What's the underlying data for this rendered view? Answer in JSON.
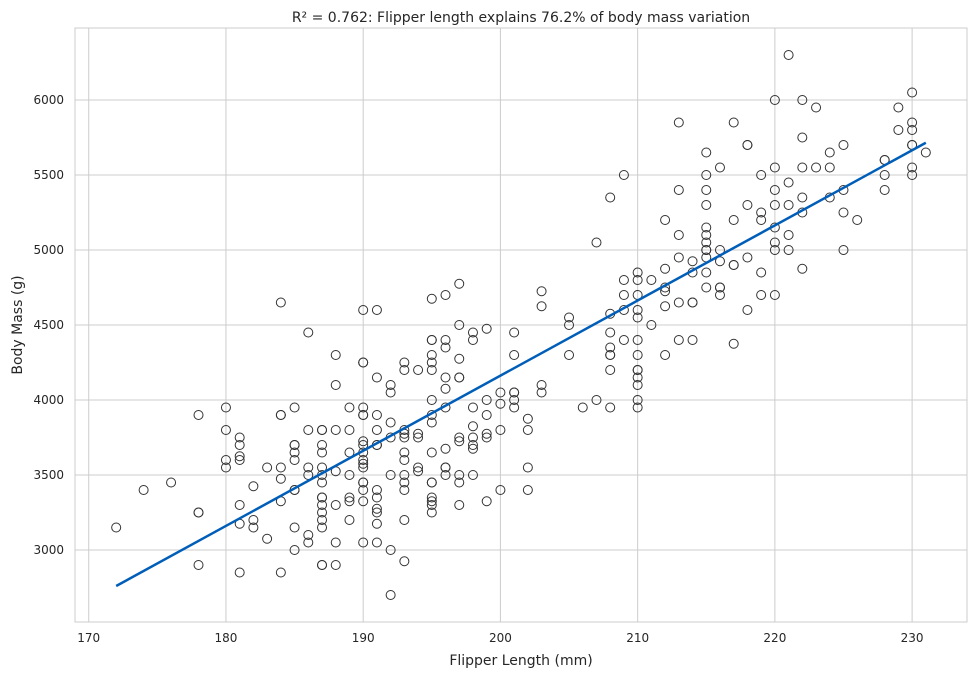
{
  "chart_data": {
    "type": "scatter",
    "title": "R² = 0.762: Flipper length explains 76.2% of body mass variation",
    "xlabel": "Flipper Length (mm)",
    "ylabel": "Body Mass (g)",
    "xlim": [
      169,
      234
    ],
    "ylim": [
      2520,
      6480
    ],
    "xticks": [
      170,
      180,
      190,
      200,
      210,
      220,
      230
    ],
    "yticks": [
      3000,
      3500,
      4000,
      4500,
      5000,
      5500,
      6000
    ],
    "grid": true,
    "colors": {
      "points": "#333333",
      "line": "#005eb8",
      "grid": "#cccccc",
      "background": "#ffffff"
    },
    "regression": {
      "x": [
        172,
        231
      ],
      "y": [
        2760,
        5715
      ]
    },
    "points": [
      [
        172,
        3150
      ],
      [
        174,
        3400
      ],
      [
        176,
        3450
      ],
      [
        178,
        3900
      ],
      [
        178,
        3250
      ],
      [
        178,
        3250
      ],
      [
        178,
        2900
      ],
      [
        180,
        3950
      ],
      [
        180,
        3800
      ],
      [
        180,
        3600
      ],
      [
        180,
        3550
      ],
      [
        181,
        3750
      ],
      [
        181,
        3700
      ],
      [
        181,
        3625
      ],
      [
        181,
        3600
      ],
      [
        181,
        3300
      ],
      [
        181,
        3175
      ],
      [
        181,
        2850
      ],
      [
        182,
        3425
      ],
      [
        182,
        3200
      ],
      [
        182,
        3150
      ],
      [
        183,
        3550
      ],
      [
        183,
        3075
      ],
      [
        184,
        4650
      ],
      [
        184,
        3900
      ],
      [
        184,
        3900
      ],
      [
        184,
        3550
      ],
      [
        184,
        3475
      ],
      [
        184,
        3325
      ],
      [
        184,
        2850
      ],
      [
        185,
        3950
      ],
      [
        185,
        3700
      ],
      [
        185,
        3700
      ],
      [
        185,
        3650
      ],
      [
        185,
        3600
      ],
      [
        185,
        3400
      ],
      [
        185,
        3400
      ],
      [
        185,
        3150
      ],
      [
        185,
        3000
      ],
      [
        186,
        4450
      ],
      [
        186,
        3800
      ],
      [
        186,
        3550
      ],
      [
        186,
        3500
      ],
      [
        186,
        3100
      ],
      [
        186,
        3050
      ],
      [
        187,
        3800
      ],
      [
        187,
        3800
      ],
      [
        187,
        3700
      ],
      [
        187,
        3650
      ],
      [
        187,
        3550
      ],
      [
        187,
        3500
      ],
      [
        187,
        3450
      ],
      [
        187,
        3350
      ],
      [
        187,
        3350
      ],
      [
        187,
        3300
      ],
      [
        187,
        3250
      ],
      [
        187,
        3200
      ],
      [
        187,
        3150
      ],
      [
        187,
        2900
      ],
      [
        187,
        2900
      ],
      [
        188,
        4300
      ],
      [
        188,
        4100
      ],
      [
        188,
        3800
      ],
      [
        188,
        3525
      ],
      [
        188,
        3300
      ],
      [
        188,
        3050
      ],
      [
        188,
        2900
      ],
      [
        189,
        3950
      ],
      [
        189,
        3800
      ],
      [
        189,
        3650
      ],
      [
        189,
        3500
      ],
      [
        189,
        3350
      ],
      [
        189,
        3325
      ],
      [
        189,
        3200
      ],
      [
        190,
        4600
      ],
      [
        190,
        4250
      ],
      [
        190,
        4250
      ],
      [
        190,
        3950
      ],
      [
        190,
        3900
      ],
      [
        190,
        3900
      ],
      [
        190,
        3725
      ],
      [
        190,
        3700
      ],
      [
        190,
        3650
      ],
      [
        190,
        3600
      ],
      [
        190,
        3575
      ],
      [
        190,
        3550
      ],
      [
        190,
        3450
      ],
      [
        190,
        3450
      ],
      [
        190,
        3400
      ],
      [
        190,
        3325
      ],
      [
        190,
        3050
      ],
      [
        191,
        4600
      ],
      [
        191,
        4150
      ],
      [
        191,
        3900
      ],
      [
        191,
        3800
      ],
      [
        191,
        3700
      ],
      [
        191,
        3700
      ],
      [
        191,
        3400
      ],
      [
        191,
        3350
      ],
      [
        191,
        3275
      ],
      [
        191,
        3250
      ],
      [
        191,
        3175
      ],
      [
        191,
        3050
      ],
      [
        192,
        4100
      ],
      [
        192,
        4050
      ],
      [
        192,
        3850
      ],
      [
        192,
        3750
      ],
      [
        192,
        3500
      ],
      [
        192,
        3000
      ],
      [
        192,
        2700
      ],
      [
        193,
        4250
      ],
      [
        193,
        4200
      ],
      [
        193,
        3800
      ],
      [
        193,
        3775
      ],
      [
        193,
        3750
      ],
      [
        193,
        3650
      ],
      [
        193,
        3600
      ],
      [
        193,
        3500
      ],
      [
        193,
        3450
      ],
      [
        193,
        3400
      ],
      [
        193,
        3200
      ],
      [
        193,
        2925
      ],
      [
        194,
        4200
      ],
      [
        194,
        3775
      ],
      [
        194,
        3750
      ],
      [
        194,
        3550
      ],
      [
        194,
        3525
      ],
      [
        195,
        4675
      ],
      [
        195,
        4400
      ],
      [
        195,
        4400
      ],
      [
        195,
        4300
      ],
      [
        195,
        4250
      ],
      [
        195,
        4200
      ],
      [
        195,
        4000
      ],
      [
        195,
        3900
      ],
      [
        195,
        3850
      ],
      [
        195,
        3650
      ],
      [
        195,
        3450
      ],
      [
        195,
        3450
      ],
      [
        195,
        3350
      ],
      [
        195,
        3325
      ],
      [
        195,
        3300
      ],
      [
        195,
        3250
      ],
      [
        196,
        4700
      ],
      [
        196,
        4400
      ],
      [
        196,
        4350
      ],
      [
        196,
        4150
      ],
      [
        196,
        4075
      ],
      [
        196,
        3950
      ],
      [
        196,
        3675
      ],
      [
        196,
        3550
      ],
      [
        196,
        3550
      ],
      [
        196,
        3500
      ],
      [
        197,
        4775
      ],
      [
        197,
        4500
      ],
      [
        197,
        4275
      ],
      [
        197,
        4150
      ],
      [
        197,
        4150
      ],
      [
        197,
        3750
      ],
      [
        197,
        3725
      ],
      [
        197,
        3500
      ],
      [
        197,
        3450
      ],
      [
        197,
        3300
      ],
      [
        198,
        4450
      ],
      [
        198,
        4400
      ],
      [
        198,
        3950
      ],
      [
        198,
        3825
      ],
      [
        198,
        3750
      ],
      [
        198,
        3700
      ],
      [
        198,
        3675
      ],
      [
        198,
        3500
      ],
      [
        199,
        4475
      ],
      [
        199,
        4000
      ],
      [
        199,
        3900
      ],
      [
        199,
        3775
      ],
      [
        199,
        3750
      ],
      [
        199,
        3325
      ],
      [
        200,
        4050
      ],
      [
        200,
        3975
      ],
      [
        200,
        3800
      ],
      [
        200,
        3400
      ],
      [
        201,
        4450
      ],
      [
        201,
        4300
      ],
      [
        201,
        4050
      ],
      [
        201,
        4050
      ],
      [
        201,
        4000
      ],
      [
        201,
        3950
      ],
      [
        202,
        3875
      ],
      [
        202,
        3800
      ],
      [
        202,
        3550
      ],
      [
        202,
        3400
      ],
      [
        203,
        4725
      ],
      [
        203,
        4625
      ],
      [
        203,
        4100
      ],
      [
        203,
        4050
      ],
      [
        205,
        4550
      ],
      [
        205,
        4500
      ],
      [
        205,
        4300
      ],
      [
        206,
        3950
      ],
      [
        207,
        5050
      ],
      [
        207,
        4000
      ],
      [
        208,
        5350
      ],
      [
        208,
        4575
      ],
      [
        208,
        4450
      ],
      [
        208,
        4350
      ],
      [
        208,
        4300
      ],
      [
        208,
        4300
      ],
      [
        208,
        4200
      ],
      [
        208,
        3950
      ],
      [
        209,
        5500
      ],
      [
        209,
        4800
      ],
      [
        209,
        4700
      ],
      [
        209,
        4600
      ],
      [
        209,
        4400
      ],
      [
        210,
        4850
      ],
      [
        210,
        4800
      ],
      [
        210,
        4700
      ],
      [
        210,
        4600
      ],
      [
        210,
        4550
      ],
      [
        210,
        4400
      ],
      [
        210,
        4300
      ],
      [
        210,
        4200
      ],
      [
        210,
        4200
      ],
      [
        210,
        4150
      ],
      [
        210,
        4100
      ],
      [
        210,
        4000
      ],
      [
        210,
        3950
      ],
      [
        211,
        4800
      ],
      [
        211,
        4500
      ],
      [
        212,
        5200
      ],
      [
        212,
        4875
      ],
      [
        212,
        4750
      ],
      [
        212,
        4725
      ],
      [
        212,
        4625
      ],
      [
        212,
        4300
      ],
      [
        213,
        5850
      ],
      [
        213,
        5400
      ],
      [
        213,
        5100
      ],
      [
        213,
        4950
      ],
      [
        213,
        4650
      ],
      [
        213,
        4400
      ],
      [
        214,
        4925
      ],
      [
        214,
        4850
      ],
      [
        214,
        4650
      ],
      [
        214,
        4650
      ],
      [
        214,
        4400
      ],
      [
        215,
        5650
      ],
      [
        215,
        5500
      ],
      [
        215,
        5400
      ],
      [
        215,
        5300
      ],
      [
        215,
        5150
      ],
      [
        215,
        5100
      ],
      [
        215,
        5050
      ],
      [
        215,
        5000
      ],
      [
        215,
        5000
      ],
      [
        215,
        4950
      ],
      [
        215,
        4850
      ],
      [
        215,
        4750
      ],
      [
        216,
        5550
      ],
      [
        216,
        5000
      ],
      [
        216,
        4925
      ],
      [
        216,
        4750
      ],
      [
        216,
        4750
      ],
      [
        216,
        4700
      ],
      [
        217,
        5850
      ],
      [
        217,
        5200
      ],
      [
        217,
        4900
      ],
      [
        217,
        4900
      ],
      [
        217,
        4375
      ],
      [
        218,
        5700
      ],
      [
        218,
        5700
      ],
      [
        218,
        5300
      ],
      [
        218,
        4950
      ],
      [
        218,
        4600
      ],
      [
        219,
        5500
      ],
      [
        219,
        5250
      ],
      [
        219,
        5200
      ],
      [
        219,
        4850
      ],
      [
        219,
        4700
      ],
      [
        220,
        6000
      ],
      [
        220,
        5550
      ],
      [
        220,
        5400
      ],
      [
        220,
        5300
      ],
      [
        220,
        5150
      ],
      [
        220,
        5050
      ],
      [
        220,
        5000
      ],
      [
        220,
        4700
      ],
      [
        221,
        6300
      ],
      [
        221,
        5450
      ],
      [
        221,
        5300
      ],
      [
        221,
        5100
      ],
      [
        221,
        5000
      ],
      [
        222,
        6000
      ],
      [
        222,
        5750
      ],
      [
        222,
        5550
      ],
      [
        222,
        5350
      ],
      [
        222,
        5250
      ],
      [
        222,
        4875
      ],
      [
        223,
        5950
      ],
      [
        223,
        5550
      ],
      [
        224,
        5650
      ],
      [
        224,
        5550
      ],
      [
        224,
        5350
      ],
      [
        225,
        5700
      ],
      [
        225,
        5400
      ],
      [
        225,
        5250
      ],
      [
        225,
        5000
      ],
      [
        226,
        5200
      ],
      [
        228,
        5600
      ],
      [
        228,
        5600
      ],
      [
        228,
        5500
      ],
      [
        228,
        5400
      ],
      [
        229,
        5950
      ],
      [
        229,
        5800
      ],
      [
        230,
        6050
      ],
      [
        230,
        5850
      ],
      [
        230,
        5800
      ],
      [
        230,
        5700
      ],
      [
        230,
        5700
      ],
      [
        230,
        5550
      ],
      [
        230,
        5500
      ],
      [
        231,
        5650
      ]
    ]
  }
}
